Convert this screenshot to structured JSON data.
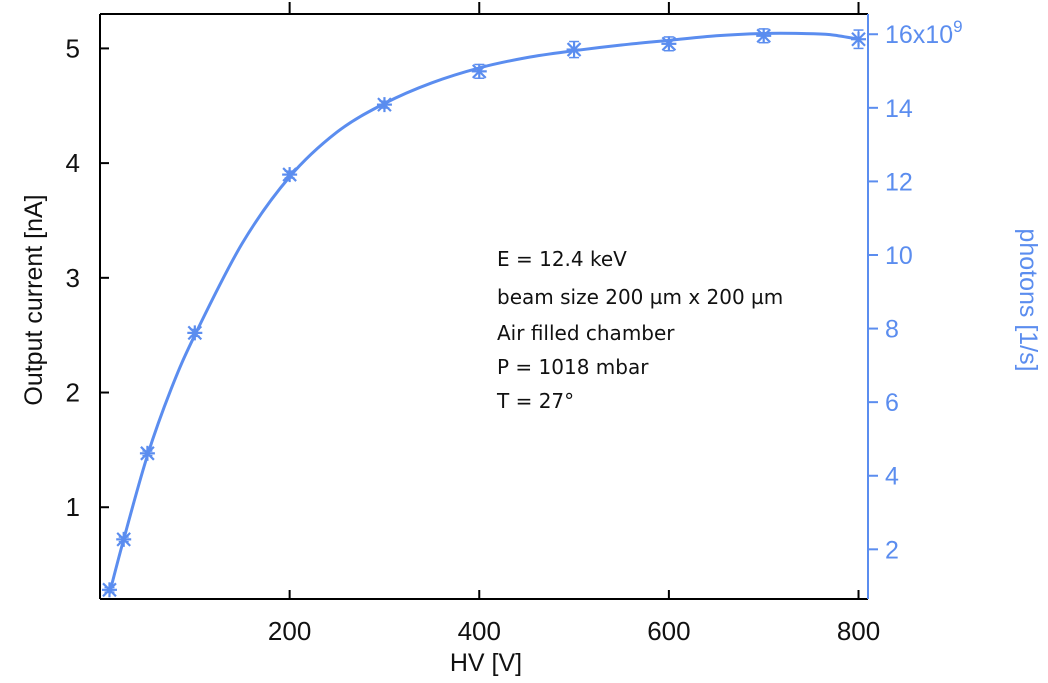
{
  "chart_data": {
    "type": "scatter",
    "title": "",
    "xlabel": "HV [V]",
    "ylabel": "Output current [nA]",
    "y2label": "photons [1/s]",
    "xlim": [
      0,
      810
    ],
    "ylim": [
      0.2,
      5.3
    ],
    "y2lim": [
      0.65,
      16.55
    ],
    "x_ticks": [
      200,
      400,
      600,
      800
    ],
    "y_ticks": [
      1,
      2,
      3,
      4,
      5
    ],
    "y2_ticks": [
      "2",
      "4",
      "6",
      "8",
      "10",
      "12",
      "14",
      "16x10^9"
    ],
    "grid": false,
    "marker": "asterisk",
    "series": [
      {
        "x": [
          10,
          25,
          50,
          100,
          200,
          300,
          400,
          500,
          600,
          700,
          800
        ],
        "values": [
          0.28,
          0.72,
          1.47,
          2.52,
          3.9,
          4.51,
          4.8,
          4.99,
          5.04,
          5.11,
          5.08
        ],
        "error": [
          0.02,
          0.02,
          0.02,
          0.03,
          0.03,
          0.03,
          0.06,
          0.07,
          0.06,
          0.06,
          0.08
        ]
      }
    ],
    "fit_curve": {
      "x": [
        10,
        25,
        50,
        75,
        100,
        150,
        200,
        250,
        300,
        350,
        400,
        450,
        500,
        550,
        600,
        650,
        700,
        740,
        770,
        800
      ],
      "values": [
        0.25,
        0.72,
        1.45,
        2.03,
        2.5,
        3.3,
        3.88,
        4.27,
        4.52,
        4.7,
        4.83,
        4.92,
        4.98,
        5.03,
        5.07,
        5.11,
        5.13,
        5.13,
        5.12,
        5.08
      ]
    },
    "annotations": [
      "E = 12.4 keV",
      "beam size 200 µm x 200 µm",
      "Air filled chamber",
      "P = 1018 mbar",
      "T =  27°"
    ],
    "colors": {
      "series": "#5b8def",
      "right_axis": "#5b8def",
      "frame": "#000000"
    }
  }
}
